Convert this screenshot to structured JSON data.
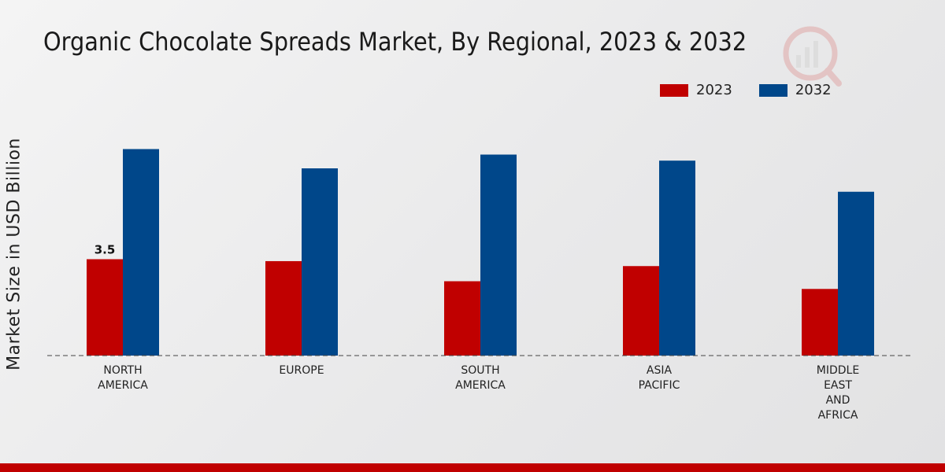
{
  "chart_data": {
    "type": "bar",
    "title": "Organic Chocolate Spreads Market, By Regional, 2023 & 2032",
    "xlabel": "",
    "ylabel": "Market Size in USD Billion",
    "categories": [
      [
        "NORTH",
        "AMERICA"
      ],
      [
        "EUROPE"
      ],
      [
        "SOUTH",
        "AMERICA"
      ],
      [
        "ASIA",
        "PACIFIC"
      ],
      [
        "MIDDLE",
        "EAST",
        "AND",
        "AFRICA"
      ]
    ],
    "series": [
      {
        "name": "2023",
        "color": "#c00000",
        "values": [
          3.5,
          3.43,
          2.7,
          3.25,
          2.42
        ]
      },
      {
        "name": "2032",
        "color": "#00478a",
        "values": [
          7.5,
          6.8,
          7.3,
          7.08,
          5.95
        ]
      }
    ],
    "data_labels": [
      {
        "series": 0,
        "index": 0,
        "text": "3.5"
      }
    ],
    "ylim": [
      0,
      10
    ],
    "grid": false,
    "legend_position": "top-right"
  }
}
